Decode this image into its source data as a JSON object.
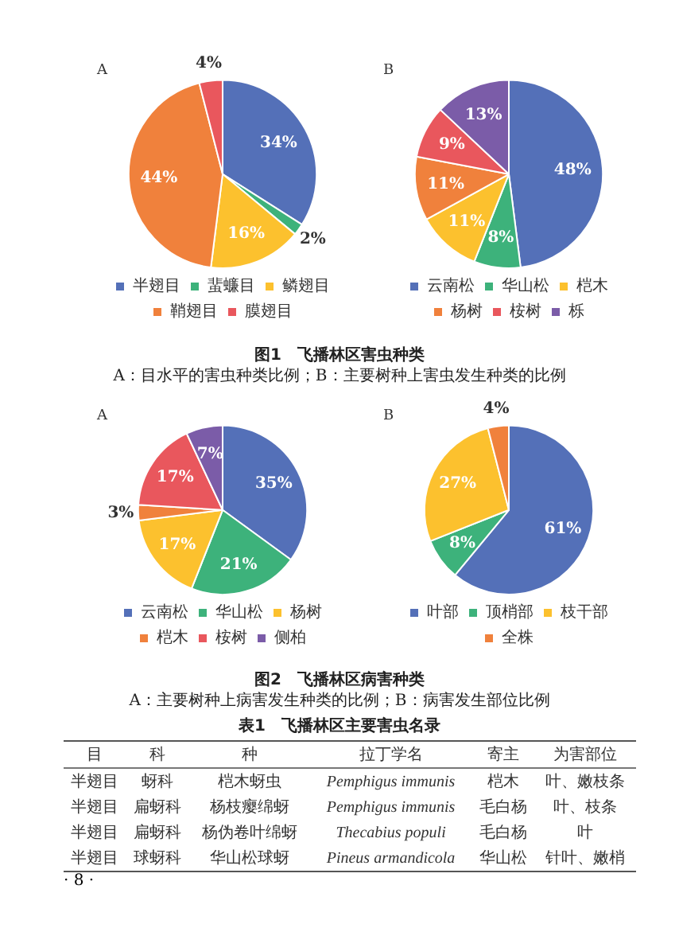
{
  "chart_data": [
    {
      "type": "pie",
      "title": "A",
      "categories": [
        "半翅目",
        "蜚蠊目",
        "鳞翅目",
        "鞘翅目",
        "膜翅目"
      ],
      "values": [
        34,
        2,
        16,
        44,
        4
      ],
      "colors": [
        "#5470b8",
        "#3db27b",
        "#fcc12e",
        "#f0813c",
        "#e9575d"
      ],
      "value_labels": [
        "34%",
        "2%",
        "16%",
        "44%",
        "4%"
      ],
      "legend": "bottom"
    },
    {
      "type": "pie",
      "title": "B",
      "categories": [
        "云南松",
        "华山松",
        "桤木",
        "杨树",
        "桉树",
        "栎"
      ],
      "values": [
        48,
        8,
        11,
        11,
        9,
        13
      ],
      "colors": [
        "#5470b8",
        "#3db27b",
        "#fcc12e",
        "#f0813c",
        "#e9575d",
        "#7b5ca8"
      ],
      "value_labels": [
        "48%",
        "8%",
        "11%",
        "11%",
        "9%",
        "13%"
      ],
      "legend": "bottom",
      "annotations": [
        "图1　飞播林区害虫种类",
        "A：目水平的害虫种类比例；B：主要树种上害虫发生种类的比例"
      ]
    },
    {
      "type": "pie",
      "title": "A",
      "categories": [
        "云南松",
        "华山松",
        "杨树",
        "桤木",
        "桉树",
        "侧柏"
      ],
      "values": [
        35,
        21,
        17,
        3,
        17,
        7
      ],
      "colors": [
        "#5470b8",
        "#3db27b",
        "#fcc12e",
        "#f0813c",
        "#e9575d",
        "#7b5ca8"
      ],
      "value_labels": [
        "35%",
        "21%",
        "17%",
        "3%",
        "17%",
        "7%"
      ],
      "legend": "bottom"
    },
    {
      "type": "pie",
      "title": "B",
      "categories": [
        "叶部",
        "顶梢部",
        "枝干部",
        "全株"
      ],
      "values": [
        61,
        8,
        27,
        4
      ],
      "colors": [
        "#5470b8",
        "#3db27b",
        "#fcc12e",
        "#f0813c"
      ],
      "value_labels": [
        "61%",
        "8%",
        "27%",
        "4%"
      ],
      "legend": "bottom",
      "annotations": [
        "图2　飞播林区病害种类",
        "A：主要树种上病害发生种类的比例；B：病害发生部位比例",
        "表1　飞播林区主要害虫名录",
        "目",
        "科",
        "种",
        "拉丁学名",
        "寄主",
        "为害部位",
        "半翅目",
        "蚜科",
        "桤木蚜虫",
        "Pemphigus immunis",
        "桤木",
        "叶、嫩枝条",
        "半翅目",
        "扁蚜科",
        "杨枝瘿绵蚜",
        "Pemphigus immunis",
        "毛白杨",
        "叶、枝条",
        "半翅目",
        "扁蚜科",
        "杨伪卷叶绵蚜",
        "Thecabius populi",
        "毛白杨",
        "叶",
        "半翅目",
        "球蚜科",
        "华山松球蚜",
        "Pineus armandicola",
        "华山松",
        "针叶、嫩梢",
        "· 8 ·"
      ]
    }
  ]
}
